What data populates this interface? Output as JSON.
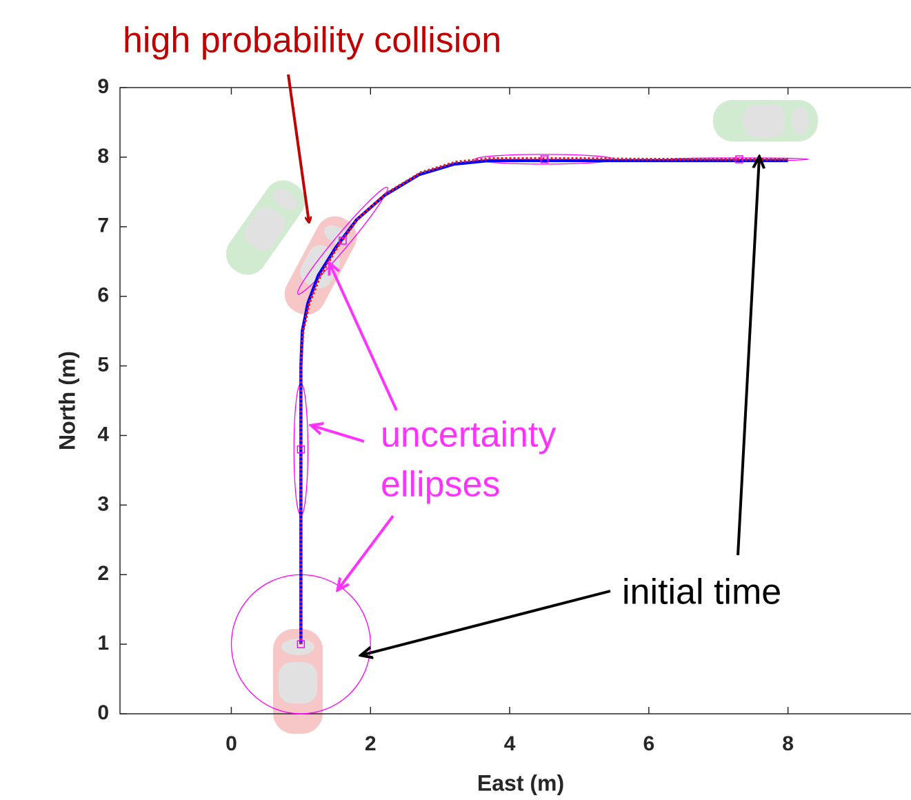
{
  "chart_data": {
    "type": "line",
    "xlabel": "East (m)",
    "ylabel": "North (m)",
    "xlim": [
      -1.6,
      9.8
    ],
    "ylim": [
      0,
      9
    ],
    "xticks": [
      0,
      2,
      4,
      6,
      8
    ],
    "yticks": [
      0,
      1,
      2,
      3,
      4,
      5,
      6,
      7,
      8,
      9
    ],
    "grid": false,
    "series": [
      {
        "color": "#0000ff",
        "style": "solid",
        "x": [
          1,
          1,
          1,
          1,
          1,
          1.02,
          1.1,
          1.25,
          1.5,
          1.8,
          2.2,
          2.7,
          3.2,
          3.7,
          4,
          5,
          6,
          7,
          8
        ],
        "values": [
          1,
          2,
          3,
          4,
          5,
          5.5,
          5.9,
          6.3,
          6.7,
          7.1,
          7.45,
          7.75,
          7.9,
          7.95,
          7.95,
          7.95,
          7.95,
          7.95,
          7.95
        ]
      },
      {
        "color": "#e8141e",
        "style": "dotted",
        "x": [
          1,
          1,
          1,
          1,
          1,
          1.03,
          1.12,
          1.28,
          1.53,
          1.83,
          2.23,
          2.73,
          3.23,
          3.73,
          4,
          5,
          6,
          7,
          8
        ],
        "values": [
          1,
          2,
          3,
          4,
          5,
          5.5,
          5.9,
          6.3,
          6.72,
          7.13,
          7.48,
          7.78,
          7.93,
          7.98,
          7.98,
          7.98,
          7.97,
          7.97,
          7.97
        ]
      }
    ],
    "ellipse_color": "#ff00ff",
    "ellipses": [
      {
        "x": 1,
        "y": 1,
        "rx": 1,
        "ry": 1,
        "angle": 0
      },
      {
        "x": 1,
        "y": 3.8,
        "rx": 0.1,
        "ry": 0.95,
        "angle": 0
      },
      {
        "x": 1.6,
        "y": 6.8,
        "rx": 1.0,
        "ry": 0.1,
        "angle": 50
      },
      {
        "x": 4.5,
        "y": 7.97,
        "rx": 1.0,
        "ry": 0.07,
        "angle": 0
      },
      {
        "x": 7.3,
        "y": 7.97,
        "rx": 1.0,
        "ry": 0.02,
        "angle": 0
      }
    ],
    "annotations": [
      "high probability collision",
      "uncertainty",
      "ellipses",
      "initial time"
    ]
  }
}
